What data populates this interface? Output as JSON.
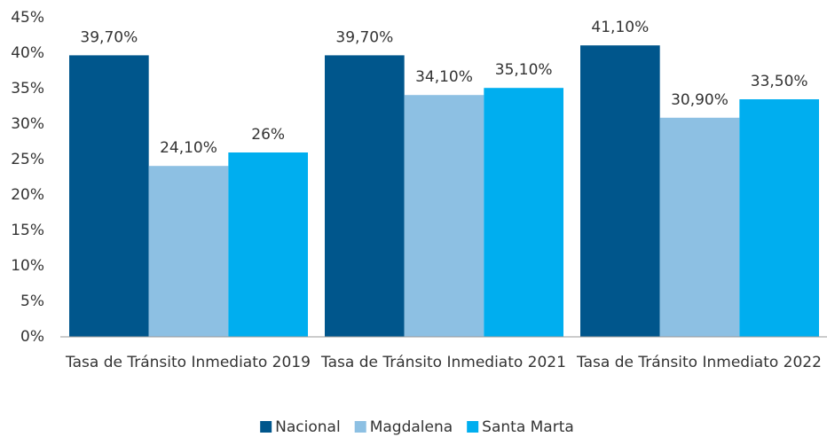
{
  "chart_data": {
    "type": "bar",
    "categories": [
      "Tasa de Tránsito Inmediato 2019",
      "Tasa de Tránsito Inmediato 2021",
      "Tasa de Tránsito Inmediato 2022"
    ],
    "series": [
      {
        "name": "Nacional",
        "color": "#00568c",
        "values": [
          39.7,
          39.7,
          41.1
        ],
        "value_labels": [
          "39,70%",
          "39,70%",
          "41,10%"
        ]
      },
      {
        "name": "Magdalena",
        "color": "#8dc0e3",
        "values": [
          24.1,
          34.1,
          30.9
        ],
        "value_labels": [
          "24,10%",
          "34,10%",
          "30,90%"
        ]
      },
      {
        "name": "Santa Marta",
        "color": "#00aeef",
        "values": [
          26,
          35.1,
          33.5
        ],
        "value_labels": [
          "26%",
          "35,10%",
          "33,50%"
        ]
      }
    ],
    "ylim": [
      0,
      45
    ],
    "yticks": [
      {
        "value": 0,
        "label": "0%"
      },
      {
        "value": 5,
        "label": "5%"
      },
      {
        "value": 10,
        "label": "10%"
      },
      {
        "value": 15,
        "label": "15%"
      },
      {
        "value": 20,
        "label": "20%"
      },
      {
        "value": 25,
        "label": "25%"
      },
      {
        "value": 30,
        "label": "30%"
      },
      {
        "value": 35,
        "label": "35%"
      },
      {
        "value": 40,
        "label": "40%"
      },
      {
        "value": 45,
        "label": "45%"
      }
    ],
    "grid": false,
    "legend": "bottom"
  }
}
